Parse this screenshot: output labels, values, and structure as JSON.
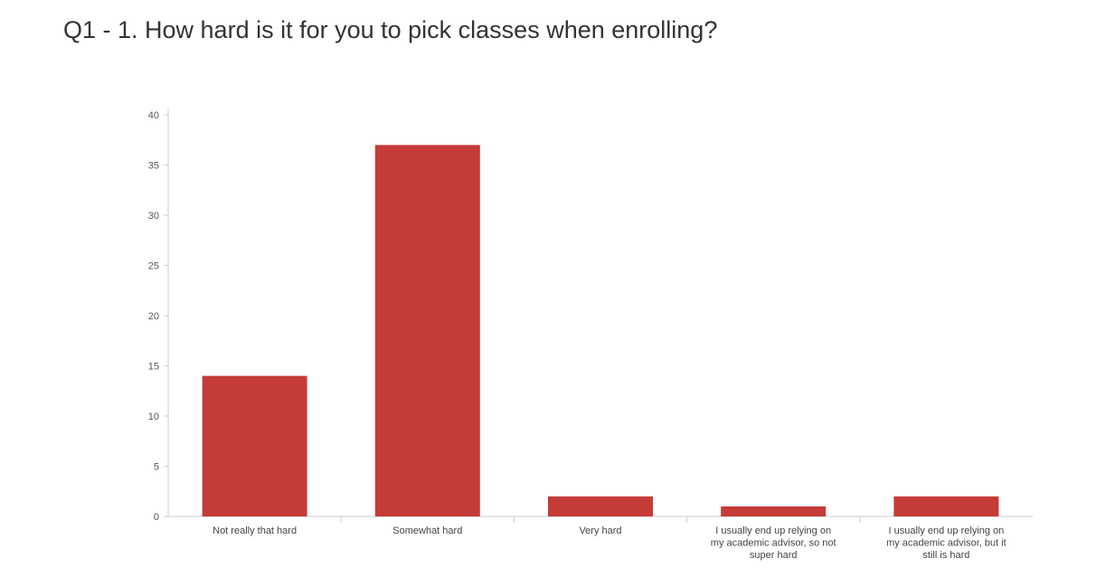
{
  "page": {
    "title": "Q1 - 1. How hard is it for you to pick classes when enrolling?"
  },
  "chart_data": {
    "type": "bar",
    "categories": [
      [
        "Not really that hard"
      ],
      [
        "Somewhat hard"
      ],
      [
        "Very hard"
      ],
      [
        "I usually end up relying on",
        "my academic advisor, so not",
        "super hard"
      ],
      [
        "I usually end up relying on",
        "my academic advisor, but it",
        "still is hard"
      ]
    ],
    "values": [
      14,
      37,
      2,
      1,
      2
    ],
    "ylim": [
      0,
      40
    ],
    "yticks": [
      0,
      5,
      10,
      15,
      20,
      25,
      30,
      35,
      40
    ],
    "bar_color": "#c43b38",
    "axis_color": "#cccccc",
    "grid": false,
    "legend": "none"
  }
}
